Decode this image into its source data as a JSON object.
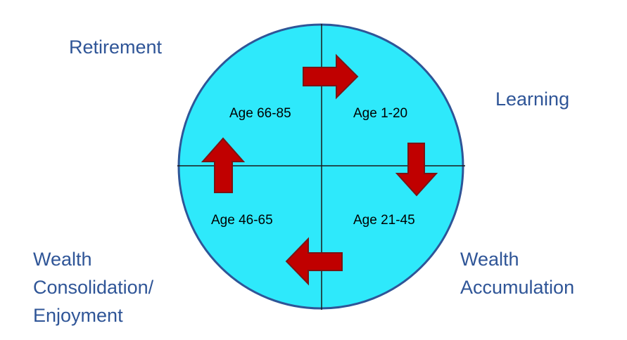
{
  "colors": {
    "circle_fill": "#2ee9fb",
    "circle_stroke": "#2f5597",
    "axis_line": "#1a1a1a",
    "arrow_fill": "#c00000",
    "arrow_stroke": "#7a1414",
    "stage_label": "#2f5597",
    "age_label": "#000000"
  },
  "stages": {
    "retirement": "Retirement",
    "learning": "Learning",
    "accumulation": [
      "Wealth",
      "Accumulation"
    ],
    "consolidation": [
      "Wealth",
      "Consolidation/",
      "Enjoyment"
    ]
  },
  "ages": {
    "learning": "Age 1-20",
    "accumulation": "Age 21-45",
    "consolidation": "Age 46-65",
    "retirement": "Age 66-85"
  },
  "arrows": {
    "top": "right-arrow-icon",
    "right": "down-arrow-icon",
    "bottom": "left-arrow-icon",
    "left": "up-arrow-icon"
  }
}
